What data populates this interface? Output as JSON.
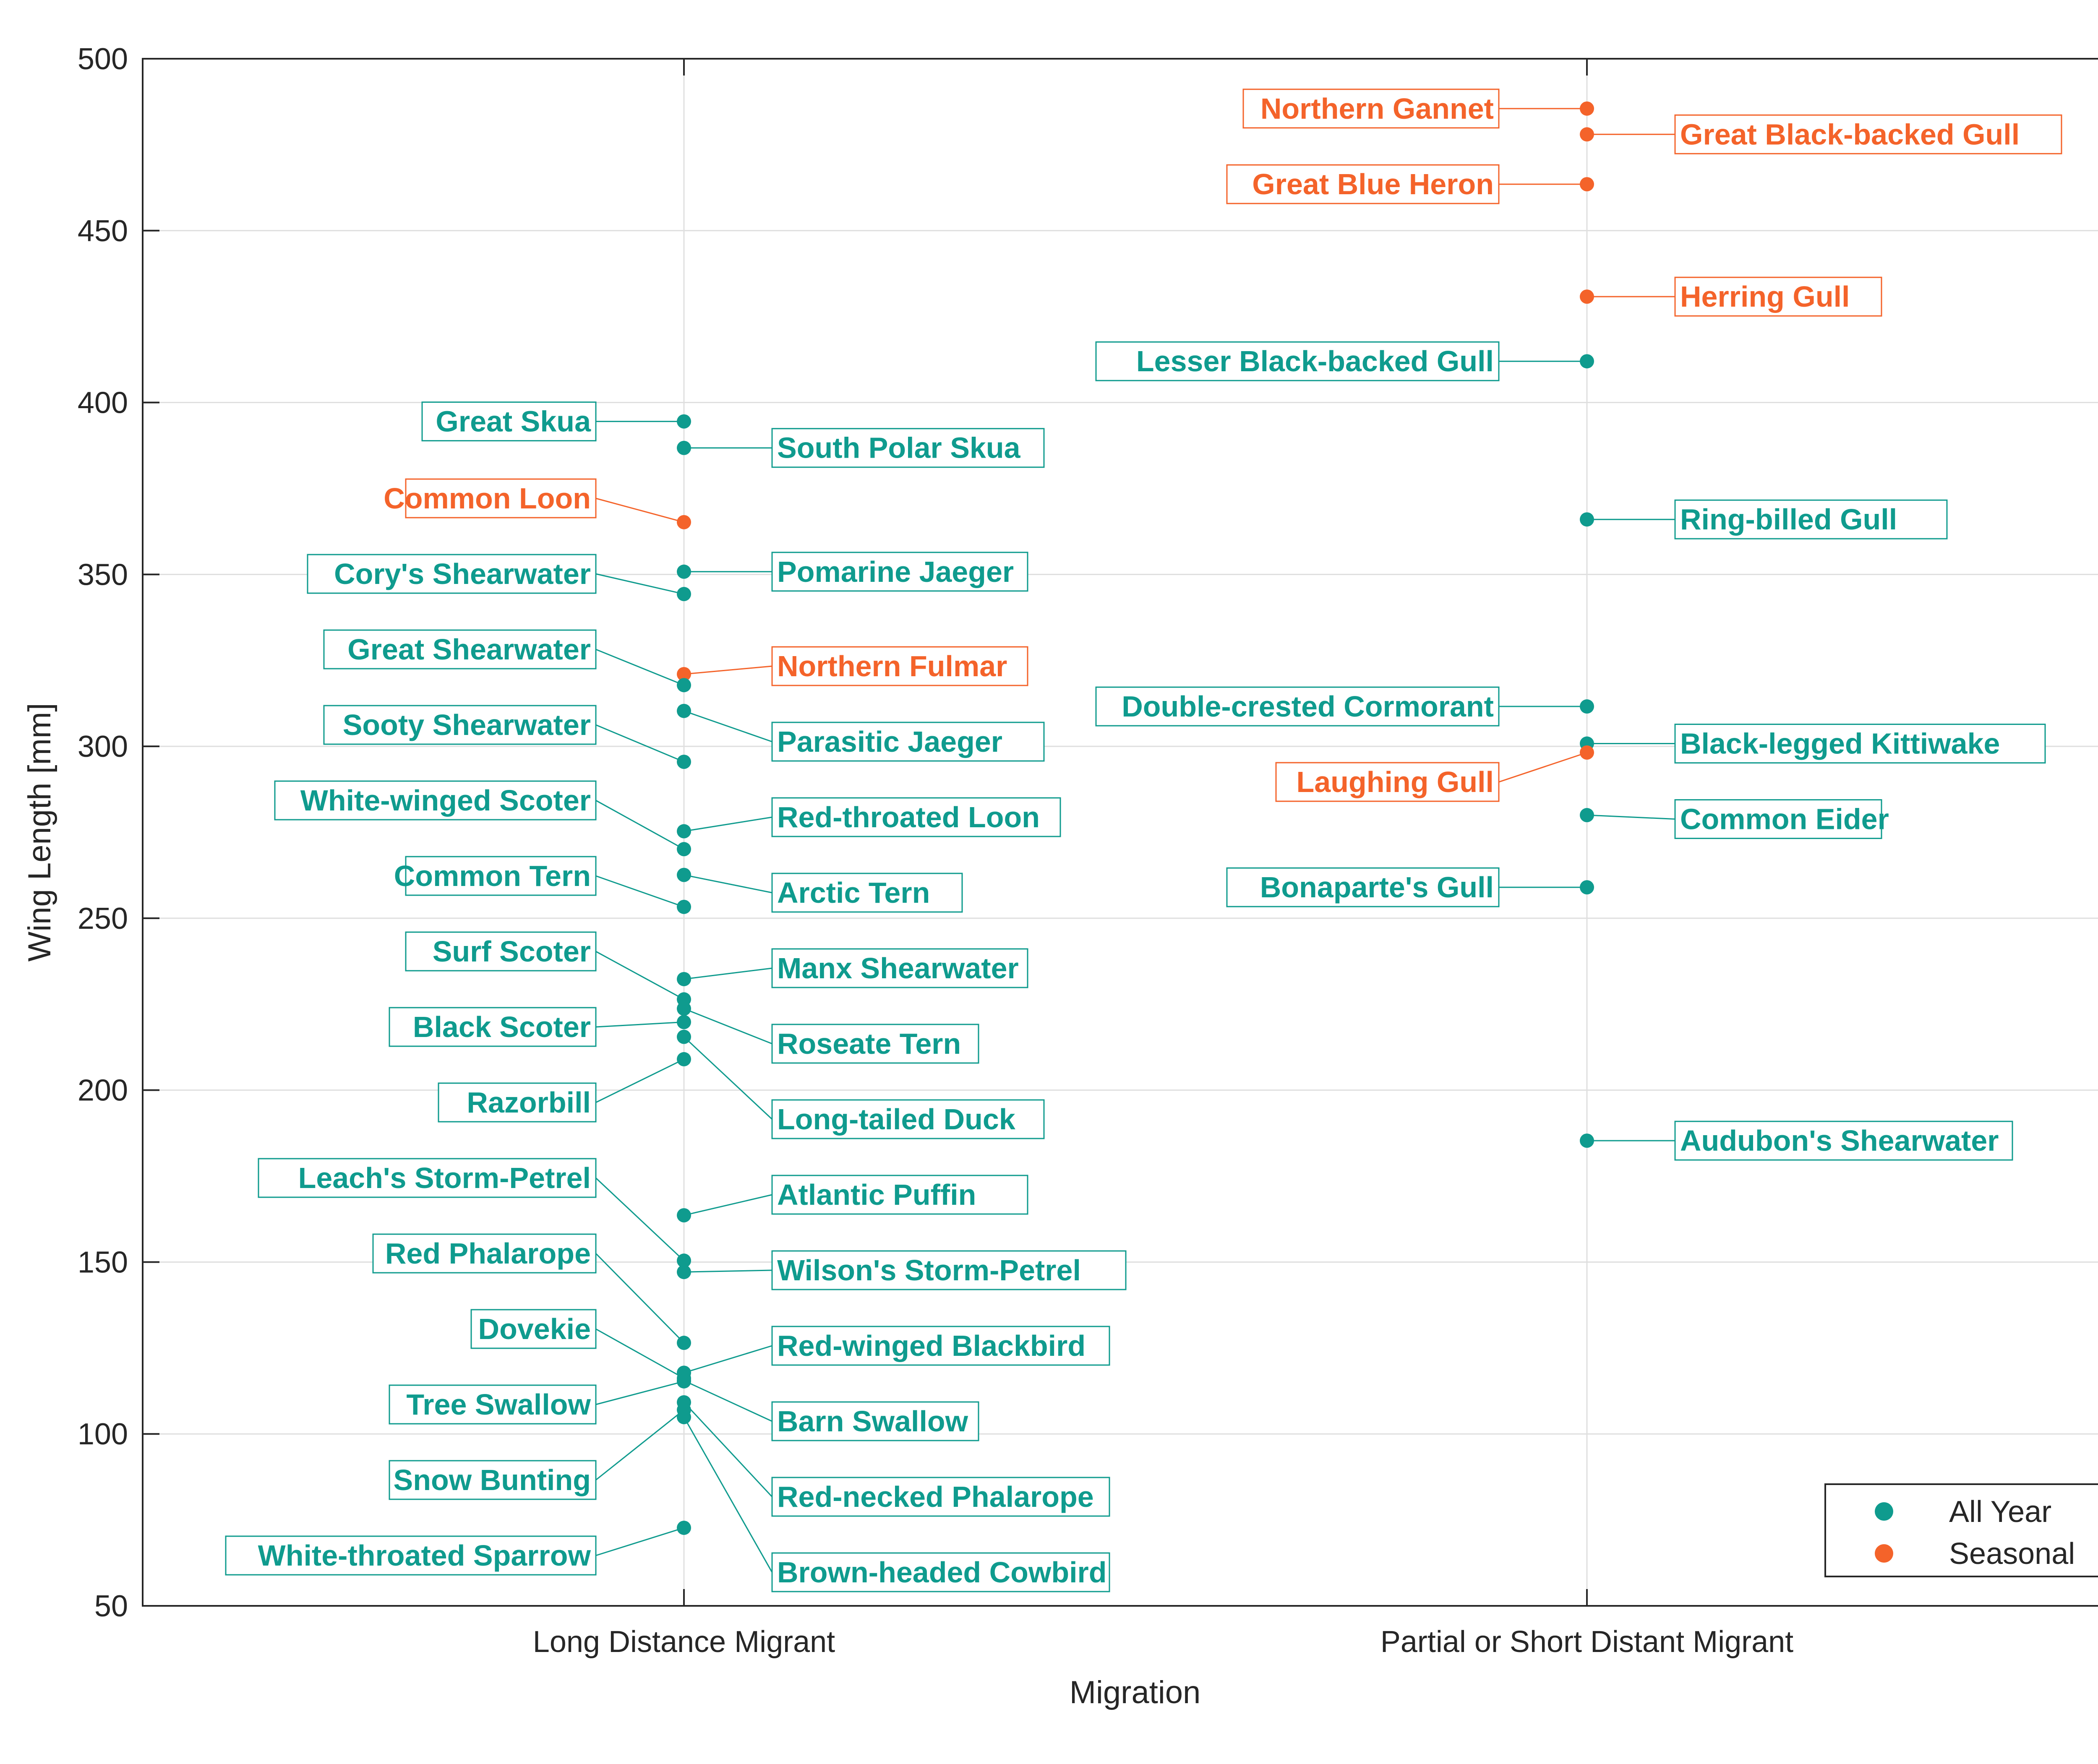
{
  "chart_data": {
    "type": "scatter",
    "title": "",
    "xlabel": "Migration",
    "ylabel": "Wing Length [mm]",
    "categories": [
      "Long Distance Migrant",
      "Partial or Short Distant Migrant"
    ],
    "ylim": [
      50,
      500
    ],
    "yticks": [
      50,
      100,
      150,
      200,
      250,
      300,
      350,
      400,
      450,
      500
    ],
    "grid": true,
    "legend_position": "bottom-right",
    "series": [
      {
        "name": "All Year",
        "color": "#0f9b8e",
        "points": [
          {
            "category": "Long Distance Migrant",
            "label": "Great Skua",
            "value": 394.5
          },
          {
            "category": "Long Distance Migrant",
            "label": "South Polar Skua",
            "value": 386.8
          },
          {
            "category": "Long Distance Migrant",
            "label": "Pomarine Jaeger",
            "value": 350.8
          },
          {
            "category": "Long Distance Migrant",
            "label": "Cory's Shearwater",
            "value": 344.3
          },
          {
            "category": "Long Distance Migrant",
            "label": "Great Shearwater",
            "value": 317.8
          },
          {
            "category": "Long Distance Migrant",
            "label": "Parasitic Jaeger",
            "value": 310.3
          },
          {
            "category": "Long Distance Migrant",
            "label": "Sooty Shearwater",
            "value": 295.5
          },
          {
            "category": "Long Distance Migrant",
            "label": "Red-throated Loon",
            "value": 275.3
          },
          {
            "category": "Long Distance Migrant",
            "label": "White-winged Scoter",
            "value": 270.1
          },
          {
            "category": "Long Distance Migrant",
            "label": "Arctic Tern",
            "value": 262.6
          },
          {
            "category": "Long Distance Migrant",
            "label": "Common Tern",
            "value": 253.3
          },
          {
            "category": "Long Distance Migrant",
            "label": "Manx Shearwater",
            "value": 232.3
          },
          {
            "category": "Long Distance Migrant",
            "label": "Surf Scoter",
            "value": 226.4
          },
          {
            "category": "Long Distance Migrant",
            "label": "Roseate Tern",
            "value": 223.7
          },
          {
            "category": "Long Distance Migrant",
            "label": "Black Scoter",
            "value": 219.8
          },
          {
            "category": "Long Distance Migrant",
            "label": "Long-tailed Duck",
            "value": 215.5
          },
          {
            "category": "Long Distance Migrant",
            "label": "Razorbill",
            "value": 209.0
          },
          {
            "category": "Long Distance Migrant",
            "label": "Atlantic Puffin",
            "value": 163.6
          },
          {
            "category": "Long Distance Migrant",
            "label": "Leach's Storm-Petrel",
            "value": 150.4
          },
          {
            "category": "Long Distance Migrant",
            "label": "Wilson's Storm-Petrel",
            "value": 147.1
          },
          {
            "category": "Long Distance Migrant",
            "label": "Red Phalarope",
            "value": 126.5
          },
          {
            "category": "Long Distance Migrant",
            "label": "Red-winged Blackbird",
            "value": 117.8
          },
          {
            "category": "Long Distance Migrant",
            "label": "Dovekie",
            "value": 116.2
          },
          {
            "category": "Long Distance Migrant",
            "label": "Barn Swallow",
            "value": 115.5
          },
          {
            "category": "Long Distance Migrant",
            "label": "Tree Swallow",
            "value": 115.3
          },
          {
            "category": "Long Distance Migrant",
            "label": "Red-necked Phalarope",
            "value": 109.2
          },
          {
            "category": "Long Distance Migrant",
            "label": "Snow Bunting",
            "value": 107.0
          },
          {
            "category": "Long Distance Migrant",
            "label": "Brown-headed Cowbird",
            "value": 104.9
          },
          {
            "category": "Long Distance Migrant",
            "label": "White-throated Sparrow",
            "value": 72.7
          },
          {
            "category": "Partial or Short Distant Migrant",
            "label": "Lesser Black-backed Gull",
            "value": 412.0
          },
          {
            "category": "Partial or Short Distant Migrant",
            "label": "Ring-billed Gull",
            "value": 366.0
          },
          {
            "category": "Partial or Short Distant Migrant",
            "label": "Double-crested Cormorant",
            "value": 311.6
          },
          {
            "category": "Partial or Short Distant Migrant",
            "label": "Black-legged Kittiwake",
            "value": 300.8
          },
          {
            "category": "Partial or Short Distant Migrant",
            "label": "Common Eider",
            "value": 280.0
          },
          {
            "category": "Partial or Short Distant Migrant",
            "label": "Bonaparte's Gull",
            "value": 259.0
          },
          {
            "category": "Partial or Short Distant Migrant",
            "label": "Audubon's Shearwater",
            "value": 185.3
          }
        ]
      },
      {
        "name": "Seasonal",
        "color": "#f4632a",
        "points": [
          {
            "category": "Long Distance Migrant",
            "label": "Common Loon",
            "value": 365.2
          },
          {
            "category": "Long Distance Migrant",
            "label": "Northern Fulmar",
            "value": 321.0
          },
          {
            "category": "Partial or Short Distant Migrant",
            "label": "Northern Gannet",
            "value": 485.5
          },
          {
            "category": "Partial or Short Distant Migrant",
            "label": "Great Black-backed Gull",
            "value": 478.0
          },
          {
            "category": "Partial or Short Distant Migrant",
            "label": "Great Blue Heron",
            "value": 463.5
          },
          {
            "category": "Partial or Short Distant Migrant",
            "label": "Herring Gull",
            "value": 430.8
          },
          {
            "category": "Partial or Short Distant Migrant",
            "label": "Laughing Gull",
            "value": 298.2
          }
        ]
      }
    ]
  }
}
